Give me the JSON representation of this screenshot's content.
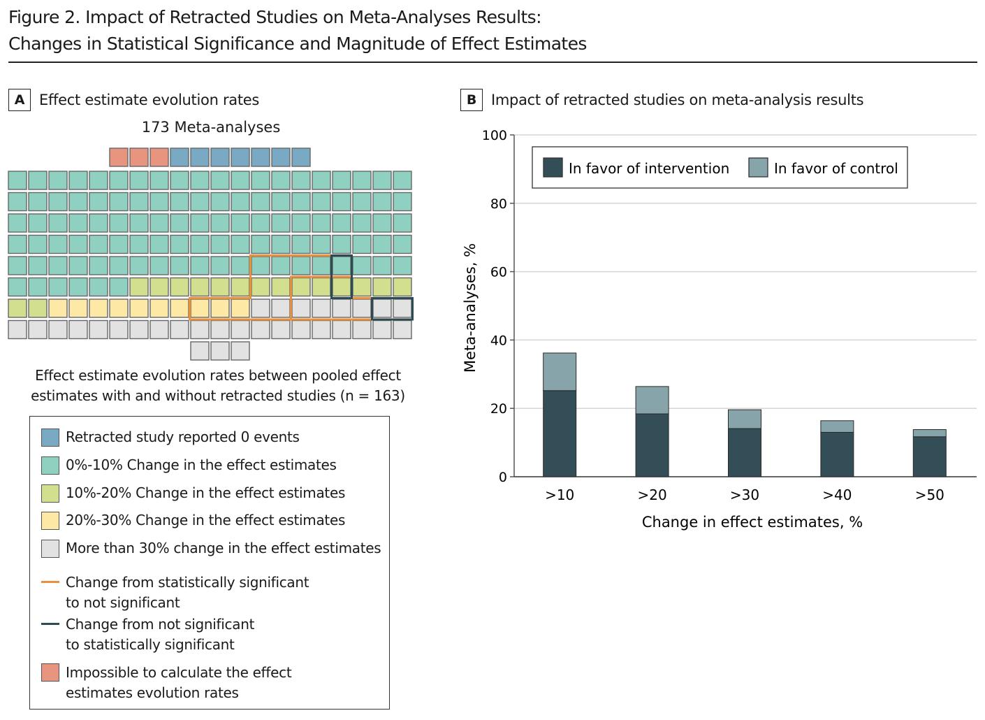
{
  "figure": {
    "title_line1": "Figure 2. Impact of Retracted Studies on Meta-Analyses Results:",
    "title_line2": "Changes in Statistical Significance and Magnitude of Effect Estimates"
  },
  "panelA": {
    "label": "A",
    "title": "Effect estimate evolution rates",
    "count_label": "173 Meta-analyses",
    "caption_line1": "Effect estimate evolution rates between pooled effect",
    "caption_line2": "estimates with and without retracted studies (n = 163)",
    "legend": [
      {
        "label": "Retracted study reported 0 events",
        "color": "#7aa9c4"
      },
      {
        "label": "0%-10% Change in the effect estimates",
        "color": "#8fd0c1"
      },
      {
        "label": "10%-20% Change in the effect estimates",
        "color": "#d2df8e"
      },
      {
        "label": "20%-30% Change in the effect estimates",
        "color": "#fde9a5"
      },
      {
        "label": "More than 30% change in the effect estimates",
        "color": "#e2e2e2"
      },
      {
        "label1": "Change from statistically significant",
        "label2": "to not significant",
        "color": "#e8913a"
      },
      {
        "label1": "Change from not significant",
        "label2": "to statistically significant",
        "color": "#2e4a52"
      },
      {
        "label1": "Impossible to calculate the effect",
        "label2": "estimates evolution rates",
        "color": "#e8957f"
      }
    ]
  },
  "chart_data": [
    {
      "type": "waffle",
      "title": "173 Meta-analyses",
      "total": 173,
      "categories": [
        {
          "name": "Impossible to calculate",
          "count": 3,
          "color": "#e8957f"
        },
        {
          "name": "Retracted study reported 0 events",
          "count": 7,
          "color": "#7aa9c4"
        },
        {
          "name": "0%-10%",
          "count": 106,
          "color": "#8fd0c1"
        },
        {
          "name": "10%-20%",
          "count": 16,
          "color": "#d2df8e"
        },
        {
          "name": "20%-30%",
          "count": 10,
          "color": "#fde9a5"
        },
        {
          "name": ">30%",
          "count": 31,
          "color": "#e2e2e2"
        }
      ],
      "significance_changes": {
        "significant_to_not": 16,
        "not_to_significant": 3
      }
    },
    {
      "type": "bar",
      "stacked": true,
      "title": "Impact of retracted studies on meta-analysis results",
      "categories": [
        ">10",
        ">20",
        ">30",
        ">40",
        ">50"
      ],
      "series": [
        {
          "name": "In favor of intervention",
          "values": [
            25.2,
            18.4,
            14.1,
            13.0,
            11.7
          ],
          "color": "#334e56"
        },
        {
          "name": "In favor of control",
          "values": [
            11.0,
            8.0,
            5.5,
            3.4,
            2.1
          ],
          "color": "#87a4ab"
        }
      ],
      "xlabel": "Change in effect estimates, %",
      "ylabel": "Meta-analyses, %",
      "ylim": [
        0,
        100
      ],
      "yticks": [
        0,
        20,
        40,
        60,
        80,
        100
      ],
      "grid": true,
      "legend": "top"
    }
  ],
  "panelB": {
    "label": "B"
  }
}
